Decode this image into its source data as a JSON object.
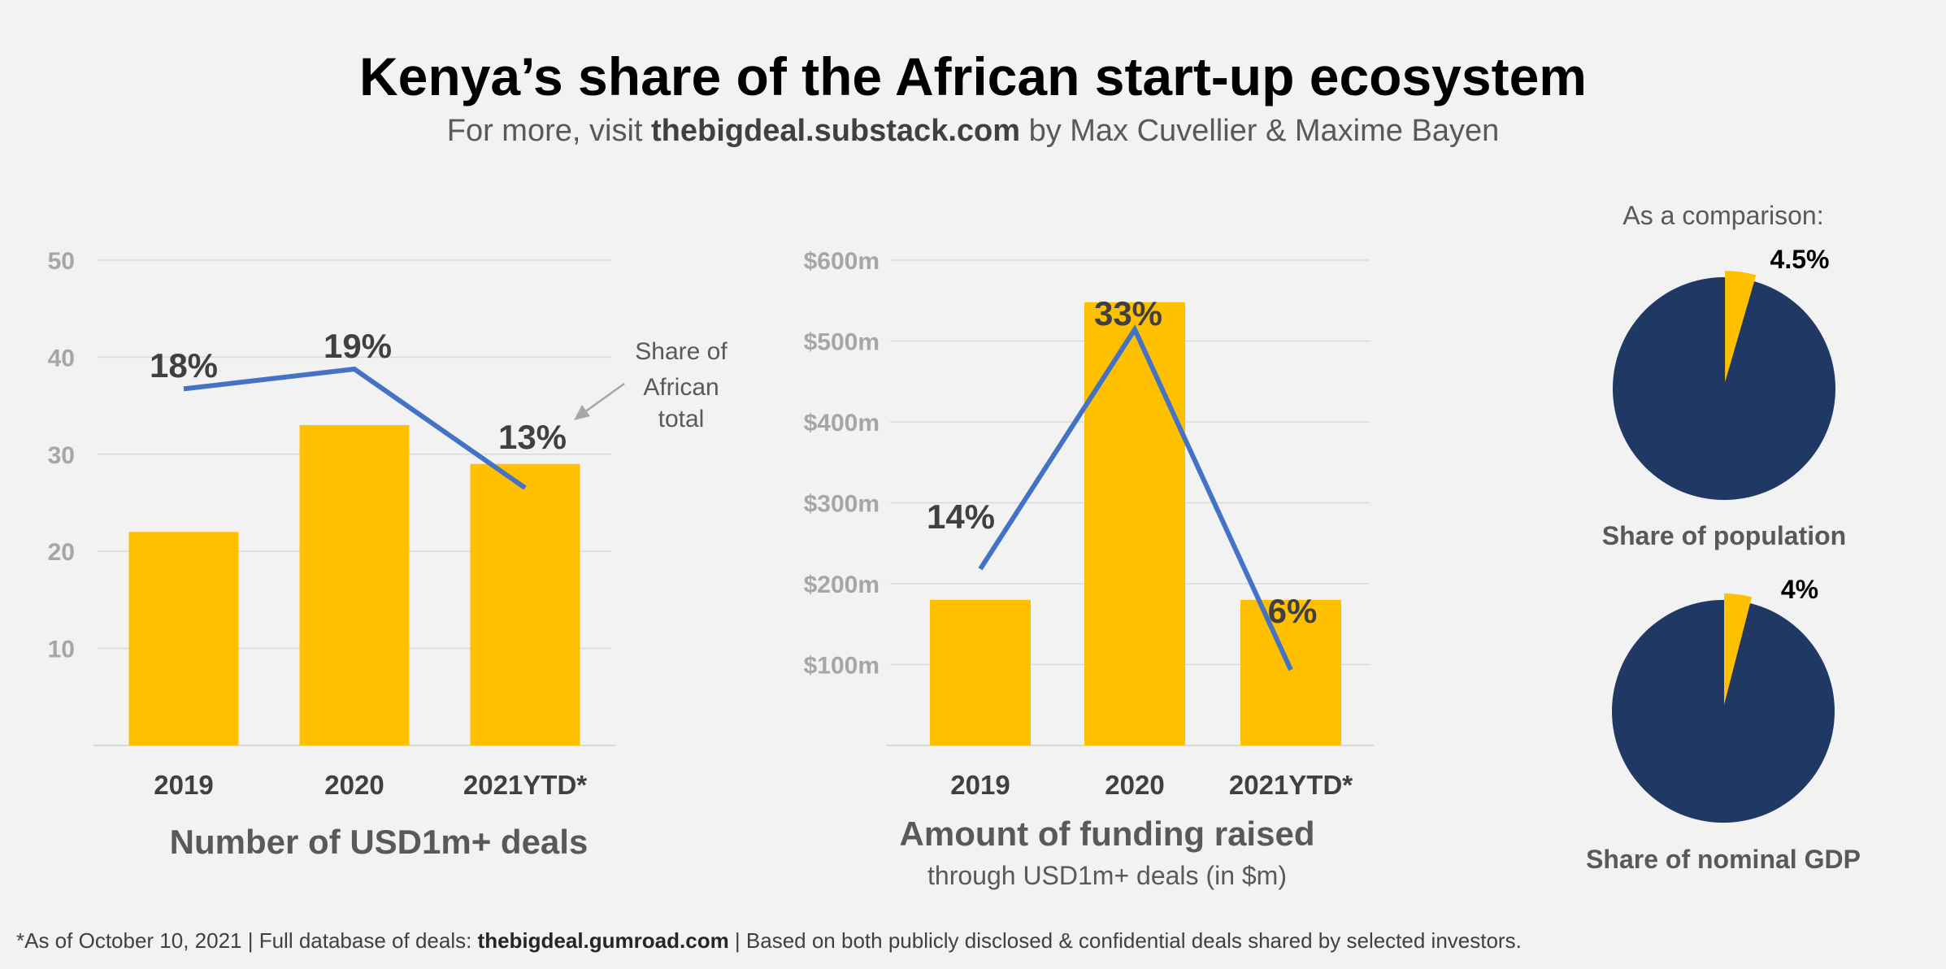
{
  "title": "Kenya’s share of the African start-up ecosystem",
  "subtitle": {
    "prefix": "For more, visit ",
    "link": "thebigdeal.substack.com",
    "suffix": " by Max Cuvellier & Maxime Bayen"
  },
  "footnote": {
    "prefix": "*As of October 10, 2021 | Full database of deals: ",
    "link": "thebigdeal.gumroad.com",
    "suffix": " | Based on both publicly disclosed & confidential deals shared by selected investors."
  },
  "colors": {
    "bar": "#FFC000",
    "line": "#4472C4",
    "pie_main": "#203864",
    "pie_slice": "#FFC000",
    "axis_text": "#A6A6A6",
    "label_text": "#404040",
    "grid": "#D9D9D9"
  },
  "chart_data": [
    {
      "type": "bar",
      "title": "Number of USD1m+ deals",
      "subtitle": "",
      "categories": [
        "2019",
        "2020",
        "2021YTD*"
      ],
      "values": [
        22,
        33,
        29
      ],
      "yticks": [
        "10",
        "20",
        "30",
        "40",
        "50"
      ],
      "ylim": [
        0,
        50
      ],
      "grid": true,
      "overlay_line": {
        "name": "Share of African total",
        "values": [
          18,
          19,
          13
        ],
        "labels": [
          "18%",
          "19%",
          "13%"
        ]
      },
      "annotation": [
        "Share of",
        "African",
        "total"
      ]
    },
    {
      "type": "bar",
      "title": "Amount of funding raised",
      "subtitle": "through USD1m+ deals (in $m)",
      "categories": [
        "2019",
        "2020",
        "2021YTD*"
      ],
      "values": [
        180,
        548,
        180
      ],
      "yticks": [
        "$100m",
        "$200m",
        "$300m",
        "$400m",
        "$500m",
        "$600m"
      ],
      "ylim": [
        0,
        600
      ],
      "grid": true,
      "overlay_line": {
        "values": [
          14,
          33,
          6
        ],
        "labels": [
          "14%",
          "33%",
          "6%"
        ]
      }
    },
    {
      "type": "pie",
      "heading": "As a comparison:",
      "title": "Share of population",
      "values": [
        4.5,
        95.5
      ],
      "label": "4.5%"
    },
    {
      "type": "pie",
      "title": "Share of nominal GDP",
      "values": [
        4,
        96
      ],
      "label": "4%"
    }
  ]
}
